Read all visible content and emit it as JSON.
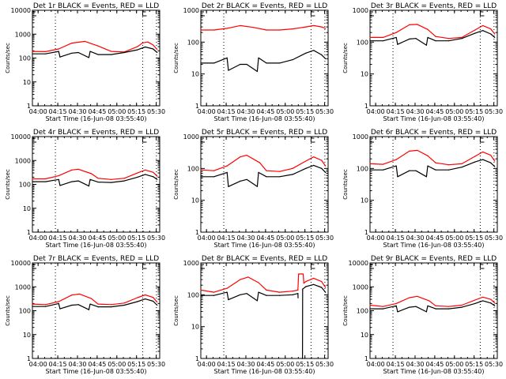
{
  "chart_data": [
    {
      "type": "line",
      "title": "Det 1r BLACK = Events, RED = LLD",
      "xlabel": "Start Time (16-Jun-08 03:55:40)",
      "ylabel": "Counts/sec",
      "yscale": "log",
      "ylim": [
        1,
        10000
      ],
      "ytick_labels": [
        "1",
        "10",
        "100",
        "1000",
        "10000"
      ],
      "xlim_min": [
        0,
        97
      ],
      "xtick_min": [
        4.33,
        19.33,
        34.33,
        49.33,
        64.33,
        79.33,
        94.33
      ],
      "xtick_labels": [
        "04:00",
        "04:15",
        "04:30",
        "04:45",
        "05:00",
        "05:15",
        "05:30"
      ],
      "vlines_min": [
        17.5,
        84,
        94.5
      ],
      "marker_min": 84,
      "series": [
        {
          "name": "LLD",
          "color": "#ff0000",
          "x_min": [
            0,
            10,
            20,
            30,
            40,
            50,
            60,
            70,
            80,
            84,
            88,
            92,
            95
          ],
          "values": [
            190,
            185,
            240,
            420,
            500,
            320,
            190,
            180,
            300,
            430,
            470,
            350,
            230
          ]
        },
        {
          "name": "Events",
          "color": "#000000",
          "x_min": [
            0,
            10,
            20,
            21,
            30,
            35,
            43,
            44,
            50,
            60,
            70,
            80,
            86,
            92,
            95
          ],
          "values": [
            150,
            150,
            190,
            110,
            160,
            170,
            105,
            190,
            140,
            140,
            170,
            220,
            290,
            240,
            170
          ]
        }
      ]
    },
    {
      "type": "line",
      "title": "Det 2r BLACK = Events, RED = LLD",
      "xlabel": "Start Time (16-Jun-08 03:55:40)",
      "ylabel": "Counts/sec",
      "yscale": "log",
      "ylim": [
        1,
        1000
      ],
      "ytick_labels": [
        "1",
        "10",
        "100",
        "1000"
      ],
      "xlim_min": [
        0,
        97
      ],
      "xtick_min": [
        4.33,
        19.33,
        34.33,
        49.33,
        64.33,
        79.33,
        94.33
      ],
      "xtick_labels": [
        "04:00",
        "04:15",
        "04:30",
        "04:45",
        "05:00",
        "05:15",
        "05:30"
      ],
      "vlines_min": [
        17.5,
        84,
        94.5
      ],
      "marker_min": 84,
      "series": [
        {
          "name": "LLD",
          "color": "#ff0000",
          "x_min": [
            0,
            10,
            20,
            30,
            40,
            50,
            60,
            70,
            80,
            86,
            92,
            95
          ],
          "values": [
            240,
            240,
            270,
            330,
            290,
            240,
            240,
            260,
            300,
            330,
            300,
            270
          ]
        },
        {
          "name": "Events",
          "color": "#000000",
          "x_min": [
            0,
            10,
            20,
            21,
            30,
            35,
            43,
            44,
            50,
            60,
            70,
            80,
            86,
            92,
            95
          ],
          "values": [
            22,
            22,
            32,
            13,
            20,
            20,
            12,
            32,
            22,
            22,
            28,
            45,
            55,
            40,
            30
          ]
        }
      ]
    },
    {
      "type": "line",
      "title": "Det 3r BLACK = Events, RED = LLD",
      "xlabel": "Start Time (16-Jun-08 03:55:40)",
      "ylabel": "Counts/sec",
      "yscale": "log",
      "ylim": [
        1,
        1000
      ],
      "ytick_labels": [
        "1",
        "10",
        "100",
        "1000"
      ],
      "xlim_min": [
        0,
        97
      ],
      "xtick_min": [
        4.33,
        19.33,
        34.33,
        49.33,
        64.33,
        79.33,
        94.33
      ],
      "xtick_labels": [
        "04:00",
        "04:15",
        "04:30",
        "04:45",
        "05:00",
        "05:15",
        "05:30"
      ],
      "vlines_min": [
        17.5,
        84,
        94.5
      ],
      "marker_min": 84,
      "series": [
        {
          "name": "LLD",
          "color": "#ff0000",
          "x_min": [
            0,
            10,
            20,
            30,
            36,
            44,
            50,
            60,
            70,
            80,
            86,
            92,
            95
          ],
          "values": [
            140,
            140,
            200,
            350,
            360,
            250,
            150,
            130,
            140,
            240,
            330,
            260,
            180
          ]
        },
        {
          "name": "Events",
          "color": "#000000",
          "x_min": [
            0,
            10,
            20,
            21,
            30,
            35,
            43,
            44,
            50,
            60,
            70,
            80,
            86,
            92,
            95
          ],
          "values": [
            110,
            110,
            140,
            85,
            125,
            130,
            80,
            140,
            110,
            110,
            130,
            190,
            230,
            180,
            140
          ]
        }
      ]
    },
    {
      "type": "line",
      "title": "Det 4r BLACK = Events, RED = LLD",
      "xlabel": "Start Time (16-Jun-08 03:55:40)",
      "ylabel": "Counts/sec",
      "yscale": "log",
      "ylim": [
        1,
        10000
      ],
      "ytick_labels": [
        "1",
        "10",
        "100",
        "1000",
        "10000"
      ],
      "xlim_min": [
        0,
        97
      ],
      "xtick_min": [
        4.33,
        19.33,
        34.33,
        49.33,
        64.33,
        79.33,
        94.33
      ],
      "xtick_labels": [
        "04:00",
        "04:15",
        "04:30",
        "04:45",
        "05:00",
        "05:15",
        "05:30"
      ],
      "vlines_min": [
        17.5,
        84,
        94.5
      ],
      "marker_min": 84,
      "series": [
        {
          "name": "LLD",
          "color": "#ff0000",
          "x_min": [
            0,
            10,
            20,
            30,
            35,
            45,
            50,
            60,
            70,
            80,
            86,
            92,
            95
          ],
          "values": [
            170,
            170,
            230,
            400,
            430,
            280,
            180,
            160,
            180,
            300,
            400,
            320,
            220
          ]
        },
        {
          "name": "Events",
          "color": "#000000",
          "x_min": [
            0,
            10,
            20,
            21,
            30,
            35,
            43,
            44,
            50,
            60,
            70,
            80,
            86,
            92,
            95
          ],
          "values": [
            130,
            130,
            160,
            90,
            130,
            140,
            85,
            160,
            125,
            120,
            140,
            200,
            260,
            210,
            160
          ]
        }
      ]
    },
    {
      "type": "line",
      "title": "Det 5r BLACK = Events, RED = LLD",
      "xlabel": "Start Time (16-Jun-08 03:55:40)",
      "ylabel": "Counts/sec",
      "yscale": "log",
      "ylim": [
        1,
        1000
      ],
      "ytick_labels": [
        "1",
        "10",
        "100",
        "1000"
      ],
      "xlim_min": [
        0,
        97
      ],
      "xtick_min": [
        4.33,
        19.33,
        34.33,
        49.33,
        64.33,
        79.33,
        94.33
      ],
      "xtick_labels": [
        "04:00",
        "04:15",
        "04:30",
        "04:45",
        "05:00",
        "05:15",
        "05:30"
      ],
      "vlines_min": [
        17.5,
        84,
        94.5
      ],
      "marker_min": 84,
      "series": [
        {
          "name": "LLD",
          "color": "#ff0000",
          "x_min": [
            0,
            10,
            20,
            30,
            35,
            45,
            50,
            60,
            70,
            80,
            86,
            92,
            95
          ],
          "values": [
            90,
            85,
            120,
            230,
            260,
            150,
            85,
            80,
            100,
            170,
            230,
            180,
            120
          ]
        },
        {
          "name": "Events",
          "color": "#000000",
          "x_min": [
            0,
            10,
            20,
            21,
            30,
            35,
            43,
            44,
            50,
            60,
            70,
            80,
            86,
            92,
            95
          ],
          "values": [
            55,
            55,
            75,
            27,
            40,
            45,
            27,
            75,
            55,
            55,
            65,
            100,
            125,
            100,
            75
          ]
        }
      ]
    },
    {
      "type": "line",
      "title": "Det 6r BLACK = Events, RED = LLD",
      "xlabel": "Start Time (16-Jun-08 03:55:40)",
      "ylabel": "Counts/sec",
      "yscale": "log",
      "ylim": [
        1,
        1000
      ],
      "ytick_labels": [
        "1",
        "10",
        "100",
        "1000"
      ],
      "xlim_min": [
        0,
        97
      ],
      "xtick_min": [
        4.33,
        19.33,
        34.33,
        49.33,
        64.33,
        79.33,
        94.33
      ],
      "xtick_labels": [
        "04:00",
        "04:15",
        "04:30",
        "04:45",
        "05:00",
        "05:15",
        "05:30"
      ],
      "vlines_min": [
        17.5,
        84,
        94.5
      ],
      "marker_min": 84,
      "series": [
        {
          "name": "LLD",
          "color": "#ff0000",
          "x_min": [
            0,
            10,
            20,
            30,
            36,
            44,
            50,
            60,
            70,
            80,
            86,
            92,
            95
          ],
          "values": [
            140,
            135,
            190,
            350,
            370,
            250,
            150,
            130,
            140,
            240,
            330,
            260,
            170
          ]
        },
        {
          "name": "Events",
          "color": "#000000",
          "x_min": [
            0,
            10,
            20,
            21,
            30,
            35,
            43,
            44,
            50,
            60,
            70,
            80,
            86,
            92,
            95
          ],
          "values": [
            90,
            90,
            120,
            55,
            85,
            85,
            55,
            120,
            90,
            90,
            110,
            160,
            190,
            150,
            115
          ]
        }
      ]
    },
    {
      "type": "line",
      "title": "Det 7r BLACK = Events, RED = LLD",
      "xlabel": "Start Time (16-Jun-08 03:55:40)",
      "ylabel": "Counts/sec",
      "yscale": "log",
      "ylim": [
        1,
        10000
      ],
      "ytick_labels": [
        "1",
        "10",
        "100",
        "1000",
        "10000"
      ],
      "xlim_min": [
        0,
        97
      ],
      "xtick_min": [
        4.33,
        19.33,
        34.33,
        49.33,
        64.33,
        79.33,
        94.33
      ],
      "xtick_labels": [
        "04:00",
        "04:15",
        "04:30",
        "04:45",
        "05:00",
        "05:15",
        "05:30"
      ],
      "vlines_min": [
        17.5,
        84,
        94.5
      ],
      "marker_min": 84,
      "series": [
        {
          "name": "LLD",
          "color": "#ff0000",
          "x_min": [
            0,
            10,
            20,
            30,
            36,
            45,
            50,
            60,
            70,
            80,
            86,
            92,
            95
          ],
          "values": [
            190,
            180,
            240,
            450,
            500,
            320,
            190,
            180,
            210,
            350,
            460,
            360,
            230
          ]
        },
        {
          "name": "Events",
          "color": "#000000",
          "x_min": [
            0,
            10,
            20,
            21,
            30,
            35,
            43,
            44,
            50,
            60,
            70,
            80,
            86,
            92,
            95
          ],
          "values": [
            150,
            150,
            200,
            120,
            170,
            180,
            110,
            190,
            145,
            145,
            170,
            240,
            310,
            250,
            170
          ]
        }
      ]
    },
    {
      "type": "line",
      "title": "Det 8r BLACK = Events, RED = LLD",
      "xlabel": "Start Time (16-Jun-08 03:55:40)",
      "ylabel": "Counts/sec",
      "yscale": "log",
      "ylim": [
        1,
        1000
      ],
      "ytick_labels": [
        "1",
        "10",
        "100",
        "1000"
      ],
      "xlim_min": [
        0,
        97
      ],
      "xtick_min": [
        4.33,
        19.33,
        34.33,
        49.33,
        64.33,
        79.33,
        94.33
      ],
      "xtick_labels": [
        "04:00",
        "04:15",
        "04:30",
        "04:45",
        "05:00",
        "05:15",
        "05:30"
      ],
      "vlines_min": [
        17.5,
        84,
        94.5
      ],
      "marker_min": 84,
      "series": [
        {
          "name": "LLD",
          "color": "#ff0000",
          "x_min": [
            0,
            10,
            20,
            30,
            36,
            44,
            50,
            60,
            70,
            74,
            74.5,
            78,
            78.5,
            80,
            86,
            92,
            95
          ],
          "values": [
            140,
            120,
            160,
            300,
            360,
            240,
            140,
            120,
            130,
            140,
            450,
            450,
            230,
            260,
            330,
            260,
            170
          ]
        },
        {
          "name": "Events",
          "color": "#000000",
          "x_min": [
            0,
            10,
            20,
            21,
            30,
            35,
            43,
            44,
            50,
            60,
            70,
            74,
            74.1,
            75,
            77,
            77.5,
            77.6,
            80,
            86,
            92,
            95
          ],
          "values": [
            95,
            95,
            120,
            70,
            100,
            110,
            65,
            120,
            95,
            95,
            100,
            110,
            80,
            null,
            1,
            1,
            150,
            180,
            210,
            170,
            120
          ]
        }
      ]
    },
    {
      "type": "line",
      "title": "Det 9r BLACK = Events, RED = LLD",
      "xlabel": "Start Time (16-Jun-08 03:55:40)",
      "ylabel": "Counts/sec",
      "yscale": "log",
      "ylim": [
        1,
        10000
      ],
      "ytick_labels": [
        "1",
        "10",
        "100",
        "1000",
        "10000"
      ],
      "xlim_min": [
        0,
        97
      ],
      "xtick_min": [
        4.33,
        19.33,
        34.33,
        49.33,
        64.33,
        79.33,
        94.33
      ],
      "xtick_labels": [
        "04:00",
        "04:15",
        "04:30",
        "04:45",
        "05:00",
        "05:15",
        "05:30"
      ],
      "vlines_min": [
        17.5,
        84,
        94.5
      ],
      "marker_min": 84,
      "series": [
        {
          "name": "LLD",
          "color": "#ff0000",
          "x_min": [
            0,
            10,
            20,
            30,
            36,
            45,
            50,
            60,
            70,
            80,
            86,
            92,
            95
          ],
          "values": [
            170,
            150,
            200,
            350,
            400,
            260,
            160,
            150,
            170,
            280,
            370,
            300,
            210
          ]
        },
        {
          "name": "Events",
          "color": "#000000",
          "x_min": [
            0,
            10,
            20,
            21,
            30,
            35,
            43,
            44,
            50,
            60,
            70,
            80,
            86,
            92,
            95
          ],
          "values": [
            120,
            120,
            160,
            90,
            140,
            150,
            90,
            160,
            120,
            120,
            140,
            200,
            260,
            210,
            160
          ]
        }
      ]
    }
  ]
}
